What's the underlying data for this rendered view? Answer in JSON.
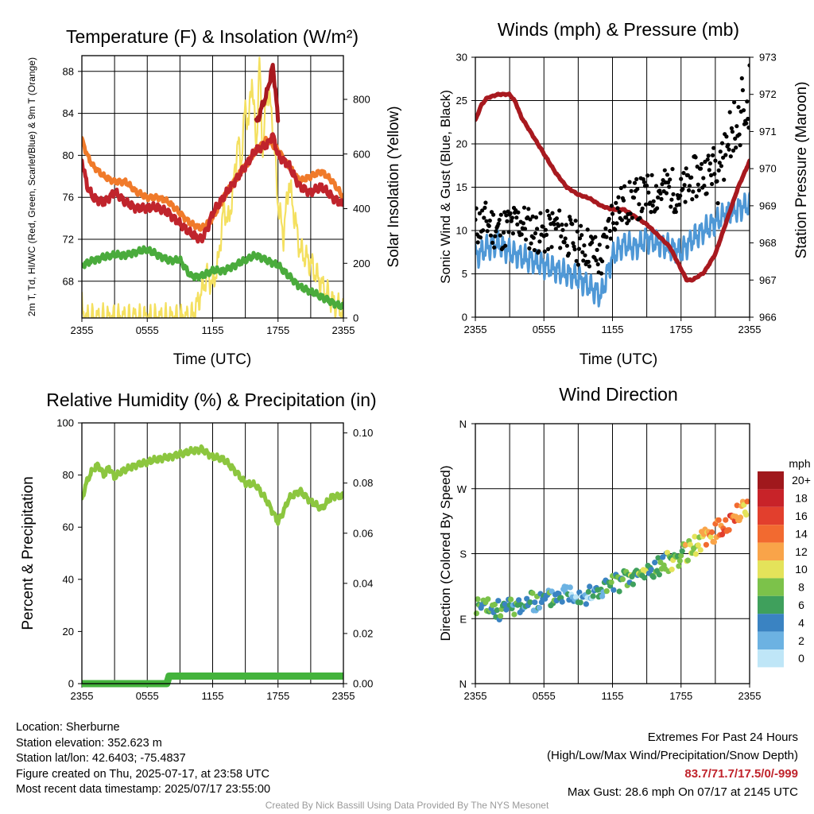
{
  "colors": {
    "red": "#c0242c",
    "orange": "#f07a2a",
    "green": "#4aab3c",
    "yellow": "#f4e060",
    "blue": "#4f98d6",
    "black": "#000000",
    "maroon": "#a8191f",
    "rh_green": "#8cc63f",
    "precip_green": "#44b33c"
  },
  "chart_data": [
    {
      "id": "temperature",
      "type": "line",
      "title": "Temperature (F) & Insolation (W/m²)",
      "xlabel": "Time (UTC)",
      "ylabel": "2m T, Td, HI/WC (Red, Green, Scarlet/Blue) & 9m T (Orange)",
      "y2label": "Solar Insolation (Yellow)",
      "x_ticks": [
        "2355",
        "0555",
        "1155",
        "1755",
        "2355"
      ],
      "x_range_hours": [
        0,
        24
      ],
      "ylim": [
        64.5,
        89.5
      ],
      "y_ticks": [
        68,
        72,
        76,
        80,
        84,
        88
      ],
      "y2lim": [
        0,
        960
      ],
      "y2_ticks": [
        0,
        200,
        400,
        600,
        800
      ],
      "series": [
        {
          "key": "temp_2m",
          "color_key": "red",
          "x": [
            0,
            0.5,
            1,
            2,
            3,
            4,
            5,
            6,
            7,
            8,
            9,
            10,
            11,
            11.5,
            12,
            13,
            14,
            15,
            16,
            17,
            17.5,
            18,
            19,
            20,
            21,
            22,
            23,
            24
          ],
          "y": [
            79.5,
            77,
            76,
            75.5,
            76.5,
            75.5,
            75,
            75,
            75,
            74.5,
            73.5,
            72.5,
            72,
            73,
            74.5,
            76,
            77.5,
            79,
            80.5,
            81,
            82,
            80,
            79,
            77,
            76.5,
            77,
            76,
            75.3
          ]
        },
        {
          "key": "heat_index",
          "color_key": "maroon",
          "x": [
            16,
            16.5,
            17,
            17.3,
            17.5,
            17.8,
            18
          ],
          "y": [
            83,
            84.5,
            86,
            87.5,
            88.5,
            86,
            83
          ]
        },
        {
          "key": "temp_9m",
          "color_key": "orange",
          "x": [
            0,
            0.5,
            1,
            2,
            3,
            4,
            5,
            6,
            7,
            8,
            9,
            10,
            11,
            12,
            13,
            14,
            15,
            16,
            17,
            18,
            19,
            20,
            21,
            22,
            23,
            24
          ],
          "y": [
            81.5,
            80,
            79,
            78,
            77.5,
            77.5,
            76.5,
            76,
            76,
            75.5,
            74.5,
            73.5,
            73,
            74,
            76,
            77.5,
            79,
            80.5,
            81.5,
            80.5,
            79,
            77.5,
            78,
            78.5,
            77.5,
            76
          ]
        },
        {
          "key": "dewpoint",
          "color_key": "green",
          "x": [
            0,
            1,
            2,
            3,
            4,
            5,
            6,
            7,
            8,
            9,
            10,
            11,
            12,
            13,
            14,
            15,
            16,
            17,
            18,
            19,
            20,
            21,
            22,
            23,
            24
          ],
          "y": [
            69.5,
            70,
            70.3,
            70.5,
            70.5,
            70.8,
            71,
            70.5,
            70,
            70,
            68.5,
            68.5,
            69,
            69,
            69.5,
            70,
            70.5,
            70,
            69.5,
            68.5,
            67.5,
            67,
            66.5,
            66,
            65.5
          ]
        },
        {
          "key": "insolation",
          "color_key": "yellow",
          "axis": "y2",
          "x": [
            0,
            0.1,
            0.3,
            9,
            10,
            10.5,
            11,
            11.5,
            12,
            12.5,
            13,
            13.5,
            14,
            14.3,
            14.6,
            15,
            15.3,
            15.6,
            16,
            16.3,
            16.6,
            17,
            17.5,
            18,
            18.5,
            19,
            20,
            21,
            22,
            23,
            24
          ],
          "y": [
            50,
            10,
            0,
            0,
            0,
            40,
            100,
            160,
            120,
            200,
            400,
            350,
            520,
            650,
            560,
            780,
            700,
            890,
            620,
            940,
            600,
            850,
            720,
            420,
            300,
            500,
            250,
            200,
            120,
            60,
            20
          ]
        }
      ]
    },
    {
      "id": "winds",
      "type": "line",
      "title": "Winds (mph) & Pressure (mb)",
      "xlabel": "Time (UTC)",
      "ylabel": "Sonic Wind & Gust (Blue, Black)",
      "y2label": "Station Pressure (Maroon)",
      "x_ticks": [
        "2355",
        "0555",
        "1155",
        "1755",
        "2355"
      ],
      "x_range_hours": [
        0,
        24
      ],
      "ylim": [
        0,
        30
      ],
      "y_ticks": [
        0,
        5,
        10,
        15,
        20,
        25,
        30
      ],
      "y2lim": [
        966,
        973
      ],
      "y2_ticks": [
        966,
        967,
        968,
        969,
        970,
        971,
        972,
        973
      ],
      "series": [
        {
          "key": "wind_speed",
          "color_key": "blue",
          "x": [
            0,
            1,
            2,
            3,
            4,
            5,
            6,
            7,
            8,
            9,
            10,
            11,
            12,
            13,
            14,
            15,
            16,
            17,
            18,
            19,
            20,
            21,
            22,
            23,
            24
          ],
          "y": [
            7,
            8,
            8.5,
            7.5,
            7,
            6.5,
            6,
            5.5,
            5,
            4.5,
            3.5,
            2.5,
            7,
            8.5,
            8,
            9,
            8.5,
            8,
            7.5,
            9,
            10,
            11,
            12,
            12.5,
            13
          ]
        },
        {
          "key": "wind_gust",
          "color_key": "black",
          "style": "dots",
          "x": [
            0,
            1,
            2,
            3,
            4,
            5,
            6,
            7,
            8,
            9,
            10,
            11,
            12,
            13,
            14,
            15,
            16,
            17,
            18,
            19,
            20,
            21,
            22,
            23,
            24
          ],
          "y": [
            10.5,
            11,
            10,
            10.5,
            11,
            10,
            9.5,
            10.5,
            9.5,
            8.5,
            8,
            6.5,
            12,
            13,
            13.5,
            14,
            14.5,
            15,
            14,
            16,
            16.5,
            17.5,
            19,
            22,
            24
          ]
        },
        {
          "key": "pressure",
          "color_key": "maroon",
          "axis": "y2",
          "x": [
            0,
            0.5,
            1,
            2,
            3,
            3.5,
            4,
            5,
            6,
            7,
            8,
            9,
            10,
            11,
            12,
            13,
            14,
            15,
            16,
            17,
            18,
            18.5,
            19,
            20,
            21,
            22,
            23,
            24
          ],
          "y": [
            971.3,
            971.7,
            971.9,
            972.0,
            972.0,
            971.8,
            971.4,
            970.9,
            970.4,
            969.9,
            969.5,
            969.3,
            969.2,
            969.0,
            968.9,
            968.9,
            968.7,
            968.5,
            968.2,
            967.9,
            967.3,
            967.0,
            967.0,
            967.2,
            967.7,
            968.6,
            969.5,
            970.2
          ]
        }
      ]
    },
    {
      "id": "humidity",
      "type": "line",
      "title": "Relative Humidity (%) & Precipitation (in)",
      "xlabel": "",
      "ylabel": "Percent & Precipitation",
      "x_ticks": [
        "2355",
        "0555",
        "1155",
        "1755",
        "2355"
      ],
      "x_range_hours": [
        0,
        24
      ],
      "ylim": [
        0,
        100
      ],
      "y_ticks": [
        0,
        20,
        40,
        60,
        80,
        100
      ],
      "y2lim": [
        0,
        0.104
      ],
      "y2_ticks": [
        0.0,
        0.02,
        0.04,
        0.06,
        0.08,
        0.1
      ],
      "series": [
        {
          "key": "relative_humidity",
          "color_key": "rh_green",
          "x": [
            0,
            0.5,
            1,
            1.5,
            2,
            2.5,
            3,
            3.5,
            4,
            5,
            6,
            7,
            8,
            9,
            10,
            11,
            12,
            13,
            14,
            15,
            16,
            17,
            17.5,
            18,
            18.5,
            19,
            20,
            21,
            22,
            23,
            24
          ],
          "y": [
            71,
            78,
            82,
            84,
            80,
            83,
            79,
            81,
            82,
            84,
            85,
            86,
            87,
            88,
            89,
            90,
            87,
            86,
            82,
            77,
            76,
            70,
            66,
            62,
            66,
            71,
            74,
            70,
            67,
            72,
            72
          ]
        },
        {
          "key": "precipitation",
          "color_key": "precip_green",
          "axis": "y2",
          "x": [
            0,
            7.8,
            8,
            24
          ],
          "y": [
            0.0,
            0.0,
            0.003,
            0.003
          ]
        }
      ]
    },
    {
      "id": "wind_direction",
      "type": "scatter",
      "title": "Wind Direction",
      "xlabel": "",
      "ylabel": "Direction (Colored By Speed)",
      "x_ticks": [
        "2355",
        "0555",
        "1155",
        "1755",
        "2355"
      ],
      "x_range_hours": [
        0,
        24
      ],
      "y_categories": [
        "N",
        "E",
        "S",
        "W",
        "N"
      ],
      "ylim_degrees": [
        0,
        360
      ],
      "trend_x": [
        0,
        2,
        4,
        6,
        8,
        10,
        12,
        14,
        16,
        18,
        20,
        22,
        24
      ],
      "trend_y": [
        108,
        102,
        110,
        115,
        128,
        122,
        138,
        148,
        162,
        178,
        200,
        222,
        248
      ],
      "trend_speed": [
        6,
        6,
        4,
        5,
        4,
        3,
        6,
        7,
        7,
        8,
        11,
        15,
        12
      ],
      "legend": {
        "title": "mph",
        "labels": [
          "20+",
          "18",
          "16",
          "14",
          "12",
          "10",
          "8",
          "6",
          "4",
          "2",
          "0"
        ],
        "colors": [
          "#a0181c",
          "#c82329",
          "#e23f2d",
          "#f26a30",
          "#f9a449",
          "#e4e35a",
          "#7cc24a",
          "#3fa05c",
          "#3a83c2",
          "#6cb2e2",
          "#bfe6f7"
        ]
      }
    }
  ],
  "footer": {
    "location": "Location: Sherburne",
    "elevation": "Station elevation: 352.623 m",
    "latlon": "Station lat/lon: 42.6403; -75.4837",
    "created": "Figure created on Thu, 2025-07-17, at 23:58 UTC",
    "recent": "Most recent data timestamp: 2025/07/17 23:55:00",
    "extremes_title": "Extremes For Past 24 Hours",
    "extremes_subtitle": "(High/Low/Max Wind/Precipitation/Snow Depth)",
    "extremes_values": "83.7/71.7/17.5/0/-999",
    "max_gust": "Max Gust: 28.6 mph On 07/17 at 2145 UTC",
    "credit": "Created By Nick Bassill Using Data Provided By The NYS Mesonet"
  }
}
